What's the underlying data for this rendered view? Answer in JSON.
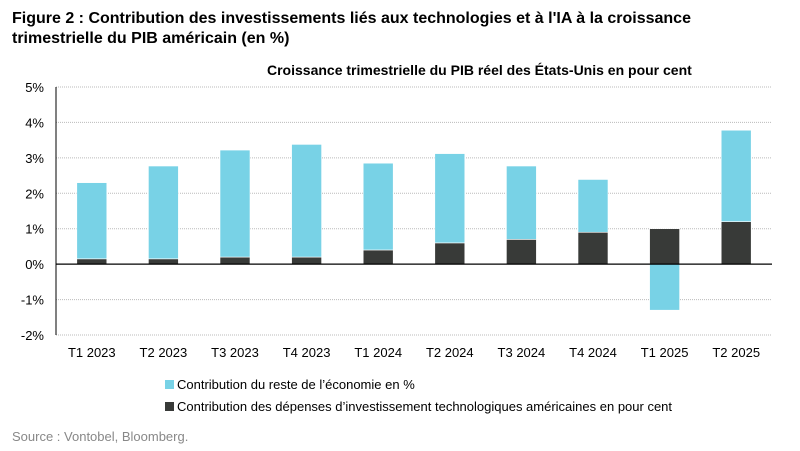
{
  "figure_title": "Figure 2 : Contribution des investissements liés aux technologies et à l'IA à la croissance trimestrielle du PIB américain (en %)",
  "source": "Source : Vontobel, Bloomberg.",
  "chart_data": {
    "type": "bar",
    "stacked": true,
    "title": "Croissance trimestrielle du PIB réel des États-Unis en pour cent",
    "categories": [
      "T1 2023",
      "T2 2023",
      "T3 2023",
      "T4 2023",
      "T1 2024",
      "T2 2024",
      "T3 2024",
      "T4 2024",
      "T1 2025",
      "T2 2025"
    ],
    "series": [
      {
        "name": "Contribution des dépenses d’investissement technologiques américaines en pour cent",
        "color": "#383a38",
        "values": [
          0.15,
          0.15,
          0.2,
          0.2,
          0.4,
          0.6,
          0.7,
          0.9,
          1.0,
          1.2
        ]
      },
      {
        "name": "Contribution du reste de l’économie en %",
        "color": "#78d2e6",
        "values": [
          2.15,
          2.62,
          3.02,
          3.18,
          2.45,
          2.52,
          2.07,
          1.49,
          -1.3,
          2.58
        ]
      }
    ],
    "legend_order": [
      1,
      0
    ],
    "ylim": [
      -2,
      5
    ],
    "yticks": [
      -2,
      -1,
      0,
      1,
      2,
      3,
      4,
      5
    ],
    "ytick_labels": [
      "-2%",
      "-1%",
      "0%",
      "1%",
      "2%",
      "3%",
      "4%",
      "5%"
    ],
    "grid": true,
    "legend_placement": "bottom-left"
  }
}
